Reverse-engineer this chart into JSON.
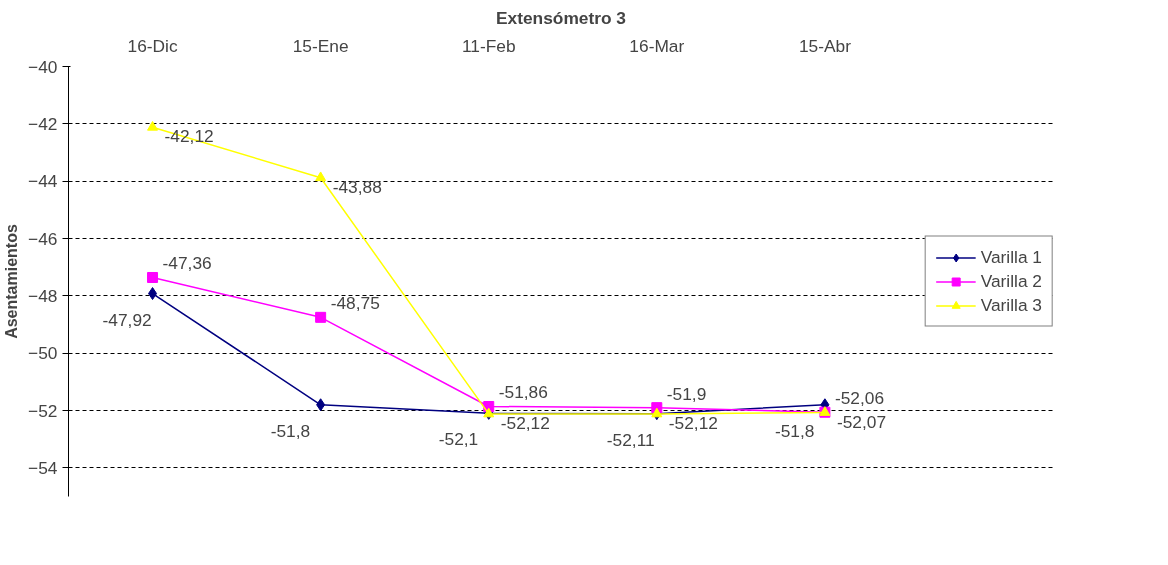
{
  "chart_data": {
    "type": "line",
    "title": "Extensómetro 3",
    "ylabel": "Asentamientos",
    "categories": [
      "16-Dic",
      "15-Ene",
      "11-Feb",
      "16-Mar",
      "15-Abr"
    ],
    "ylim": [
      -55,
      -40
    ],
    "yticks": [
      -54,
      -52,
      -50,
      -48,
      -46,
      -44,
      -42,
      -40
    ],
    "grid": "y",
    "legend": "right",
    "series": [
      {
        "name": "Varilla 1",
        "color": "#000080",
        "marker": "diamond",
        "values": [
          -47.92,
          -51.8,
          -52.1,
          -52.11,
          -51.8
        ],
        "value_labels": [
          "-47,92",
          "-51,8",
          "-52,1",
          "-52,11",
          "-51,8"
        ]
      },
      {
        "name": "Varilla 2",
        "color": "#ff00ff",
        "marker": "square",
        "values": [
          -47.36,
          -48.75,
          -51.86,
          -51.9,
          -52.06
        ],
        "value_labels": [
          "-47,36",
          "-48,75",
          "-51,86",
          "-51,9",
          "-52,06"
        ]
      },
      {
        "name": "Varilla 3",
        "color": "#ffff00",
        "marker": "triangle",
        "values": [
          -42.12,
          -43.88,
          -52.12,
          -52.12,
          -52.07
        ],
        "value_labels": [
          "-42,12",
          "-43,88",
          "-52,12",
          "-52,12",
          "-52,07"
        ]
      }
    ]
  }
}
